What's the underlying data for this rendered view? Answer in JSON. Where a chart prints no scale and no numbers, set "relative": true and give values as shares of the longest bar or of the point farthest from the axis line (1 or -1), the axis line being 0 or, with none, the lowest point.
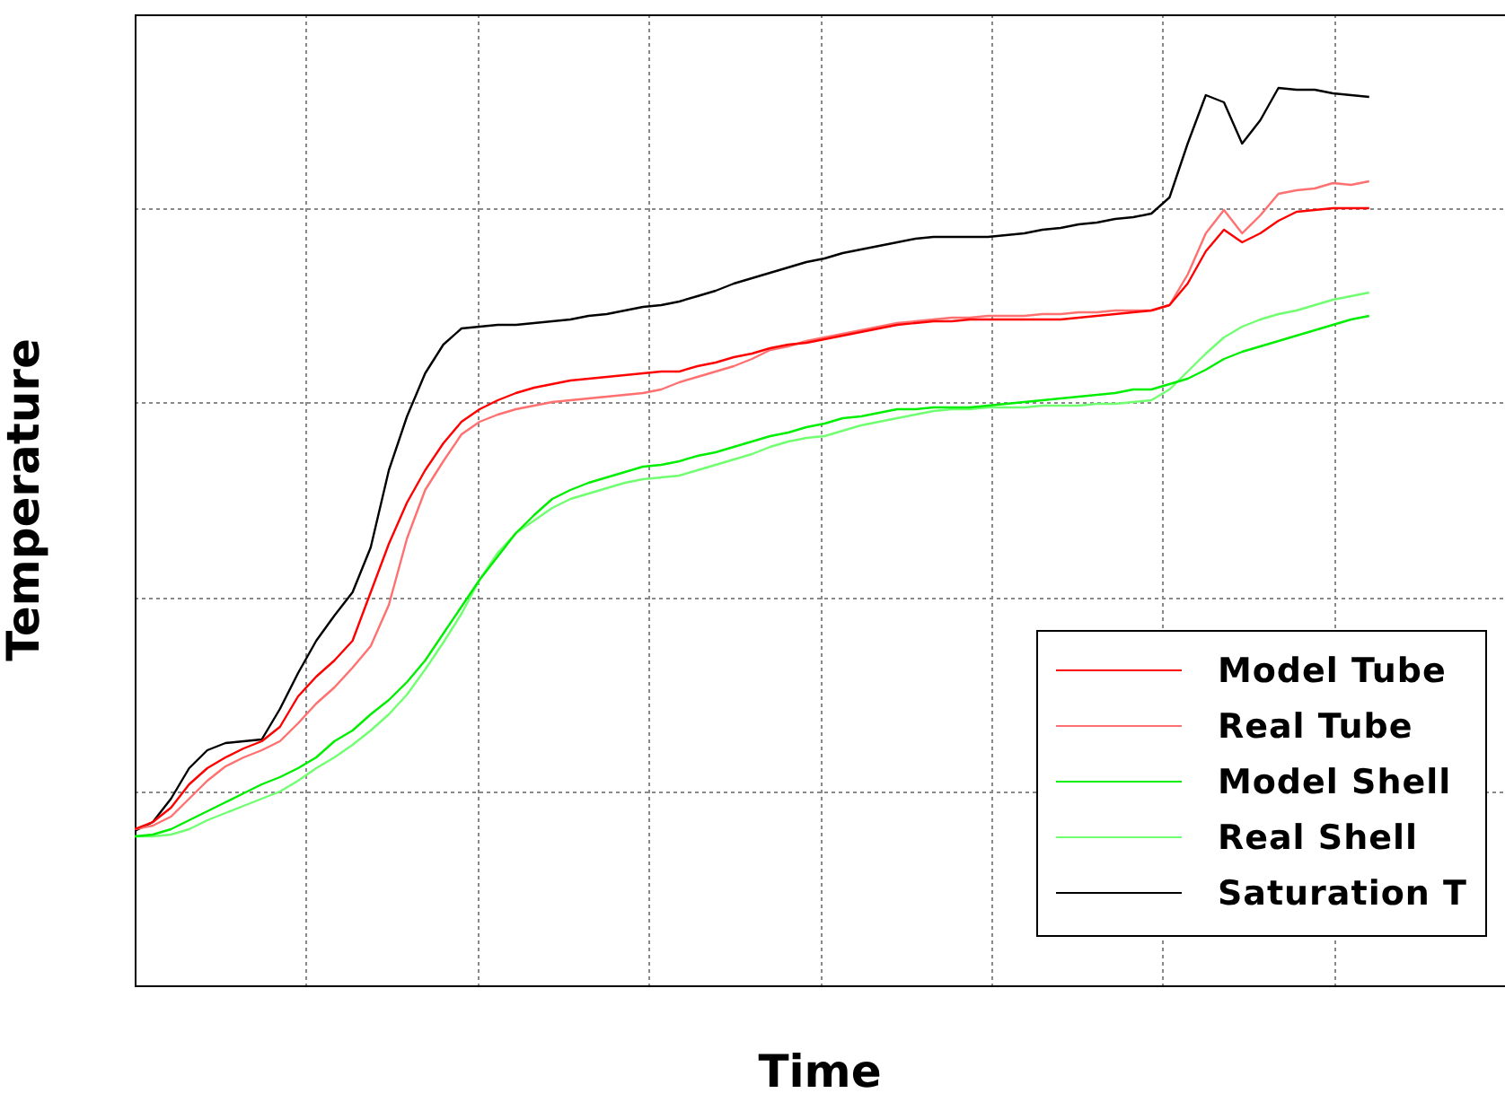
{
  "chart_data": {
    "type": "line",
    "relative": true,
    "xlabel": "Time",
    "ylabel": "Temperature",
    "grid": true,
    "legend": "bottom right",
    "line_style": "solid",
    "categories": [
      null,
      null,
      null,
      null,
      null,
      null,
      null,
      null,
      null,
      null,
      null,
      null,
      null,
      null,
      null,
      null,
      null,
      null,
      null,
      null,
      null,
      null,
      null,
      null,
      null,
      null,
      null,
      null,
      null,
      null,
      null,
      null,
      null,
      null,
      null,
      null,
      null,
      null,
      null,
      null,
      null,
      null,
      null,
      null,
      null,
      null,
      null,
      null,
      null,
      null,
      null,
      null,
      null,
      null,
      null,
      null,
      null,
      null,
      null,
      null,
      null,
      null,
      null,
      null,
      null,
      null,
      null,
      null,
      null
    ],
    "series": [
      {
        "name": "Model Tube",
        "color": "#ff0000",
        "values": [
          0.174,
          0.182,
          0.198,
          0.224,
          0.242,
          0.254,
          0.264,
          0.272,
          0.288,
          0.322,
          0.344,
          0.362,
          0.384,
          0.438,
          0.492,
          0.538,
          0.574,
          0.604,
          0.628,
          0.642,
          0.652,
          0.66,
          0.666,
          0.67,
          0.674,
          0.676,
          0.678,
          0.68,
          0.682,
          0.684,
          0.684,
          0.69,
          0.694,
          0.7,
          0.704,
          0.71,
          0.714,
          0.716,
          0.72,
          0.724,
          0.728,
          0.732,
          0.736,
          0.738,
          0.74,
          0.74,
          0.742,
          0.742,
          0.742,
          0.742,
          0.742,
          0.742,
          0.744,
          0.746,
          0.748,
          0.75,
          0.752,
          0.758,
          0.782,
          0.818,
          0.842,
          0.828,
          0.838,
          0.852,
          0.862,
          0.864,
          0.866,
          0.866,
          0.866
        ]
      },
      {
        "name": "Real Tube",
        "color": "#ff7070",
        "values": [
          0.174,
          0.178,
          0.188,
          0.208,
          0.228,
          0.244,
          0.254,
          0.262,
          0.272,
          0.292,
          0.314,
          0.332,
          0.354,
          0.378,
          0.424,
          0.498,
          0.552,
          0.584,
          0.614,
          0.628,
          0.636,
          0.642,
          0.646,
          0.65,
          0.652,
          0.654,
          0.656,
          0.658,
          0.66,
          0.664,
          0.672,
          0.678,
          0.684,
          0.69,
          0.698,
          0.708,
          0.712,
          0.718,
          0.722,
          0.726,
          0.73,
          0.734,
          0.738,
          0.74,
          0.742,
          0.744,
          0.744,
          0.746,
          0.746,
          0.746,
          0.748,
          0.748,
          0.75,
          0.75,
          0.752,
          0.752,
          0.752,
          0.758,
          0.792,
          0.838,
          0.864,
          0.838,
          0.858,
          0.882,
          0.886,
          0.888,
          0.894,
          0.892,
          0.896
        ]
      },
      {
        "name": "Model Shell",
        "color": "#00ee00",
        "values": [
          0.166,
          0.168,
          0.174,
          0.184,
          0.194,
          0.204,
          0.214,
          0.224,
          0.232,
          0.242,
          0.254,
          0.272,
          0.284,
          0.302,
          0.318,
          0.338,
          0.362,
          0.392,
          0.422,
          0.452,
          0.478,
          0.504,
          0.524,
          0.542,
          0.552,
          0.56,
          0.566,
          0.572,
          0.578,
          0.58,
          0.584,
          0.59,
          0.594,
          0.6,
          0.606,
          0.612,
          0.616,
          0.622,
          0.626,
          0.632,
          0.634,
          0.638,
          0.642,
          0.642,
          0.644,
          0.644,
          0.644,
          0.646,
          0.648,
          0.65,
          0.652,
          0.654,
          0.656,
          0.658,
          0.66,
          0.664,
          0.664,
          0.67,
          0.676,
          0.686,
          0.698,
          0.706,
          0.712,
          0.718,
          0.724,
          0.73,
          0.736,
          0.742,
          0.746
        ]
      },
      {
        "name": "Real Shell",
        "color": "#70ff70",
        "values": [
          0.166,
          0.166,
          0.168,
          0.174,
          0.184,
          0.192,
          0.2,
          0.208,
          0.216,
          0.228,
          0.242,
          0.254,
          0.268,
          0.284,
          0.302,
          0.324,
          0.352,
          0.382,
          0.414,
          0.452,
          0.482,
          0.504,
          0.518,
          0.532,
          0.542,
          0.548,
          0.554,
          0.56,
          0.564,
          0.566,
          0.568,
          0.574,
          0.58,
          0.586,
          0.592,
          0.6,
          0.606,
          0.61,
          0.612,
          0.618,
          0.624,
          0.628,
          0.632,
          0.636,
          0.64,
          0.642,
          0.642,
          0.644,
          0.644,
          0.644,
          0.646,
          0.646,
          0.646,
          0.648,
          0.648,
          0.65,
          0.652,
          0.664,
          0.684,
          0.704,
          0.722,
          0.734,
          0.742,
          0.748,
          0.752,
          0.758,
          0.764,
          0.768,
          0.772
        ]
      },
      {
        "name": "Saturation T",
        "color": "#000000",
        "values": [
          0.172,
          0.182,
          0.208,
          0.242,
          0.262,
          0.27,
          0.272,
          0.274,
          0.308,
          0.348,
          0.384,
          0.412,
          0.438,
          0.488,
          0.574,
          0.634,
          0.682,
          0.714,
          0.732,
          0.734,
          0.736,
          0.736,
          0.738,
          0.74,
          0.742,
          0.746,
          0.748,
          0.752,
          0.756,
          0.758,
          0.762,
          0.768,
          0.774,
          0.782,
          0.788,
          0.794,
          0.8,
          0.806,
          0.81,
          0.816,
          0.82,
          0.824,
          0.828,
          0.832,
          0.834,
          0.834,
          0.834,
          0.834,
          0.836,
          0.838,
          0.842,
          0.844,
          0.848,
          0.85,
          0.854,
          0.856,
          0.86,
          0.878,
          0.938,
          0.992,
          0.984,
          0.938,
          0.964,
          1,
          0.998,
          0.998,
          0.994,
          0.992,
          0.99
        ]
      }
    ]
  }
}
